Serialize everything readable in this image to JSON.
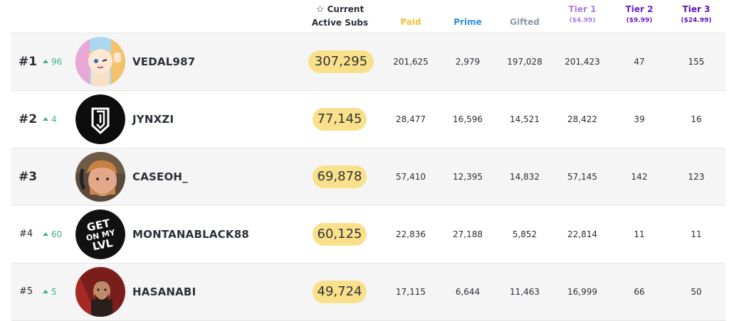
{
  "header": {
    "current_line1": "Current",
    "current_line2": "Active Subs",
    "paid": "Paid",
    "prime": "Prime",
    "gifted": "Gifted",
    "tier1": "Tier 1",
    "tier1_price": "($4.99)",
    "tier2": "Tier 2",
    "tier2_price": "($9.99)",
    "tier3": "Tier 3",
    "tier3_price": "($24.99)"
  },
  "colors": {
    "paid": "#f2c23c",
    "prime": "#2f8fdc",
    "gifted": "#8a9aa8",
    "tier1": "#a77ee3",
    "tier2": "#6a1fc9",
    "tier3": "#5a12b5",
    "change": "#3bb38a",
    "pill": "#f9e08b"
  },
  "rows": [
    {
      "rank": "#1",
      "change": "96",
      "name": "VEDAL987",
      "current": "307,295",
      "paid": "201,625",
      "prime": "2,979",
      "gifted": "197,028",
      "tier1": "201,423",
      "tier2": "47",
      "tier3": "155"
    },
    {
      "rank": "#2",
      "change": "4",
      "name": "JYNXZI",
      "current": "77,145",
      "paid": "28,477",
      "prime": "16,596",
      "gifted": "14,521",
      "tier1": "28,422",
      "tier2": "39",
      "tier3": "16"
    },
    {
      "rank": "#3",
      "change": "",
      "name": "CASEOH_",
      "current": "69,878",
      "paid": "57,410",
      "prime": "12,395",
      "gifted": "14,832",
      "tier1": "57,145",
      "tier2": "142",
      "tier3": "123"
    },
    {
      "rank": "#4",
      "change": "60",
      "name": "MONTANABLACK88",
      "current": "60,125",
      "paid": "22,836",
      "prime": "27,188",
      "gifted": "5,852",
      "tier1": "22,814",
      "tier2": "11",
      "tier3": "11"
    },
    {
      "rank": "#5",
      "change": "5",
      "name": "HASANABI",
      "current": "49,724",
      "paid": "17,115",
      "prime": "6,644",
      "gifted": "11,463",
      "tier1": "16,999",
      "tier2": "66",
      "tier3": "50"
    }
  ],
  "avatar_texts": {
    "montana_logo": "GET ON MY LVL"
  }
}
